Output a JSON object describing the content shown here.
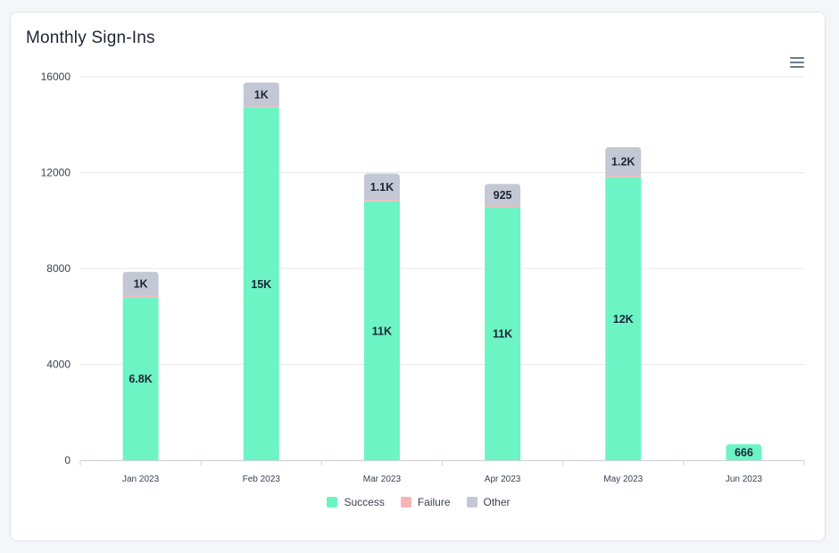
{
  "card": {
    "title": "Monthly Sign-Ins"
  },
  "toolbar": {
    "menu_icon": "hamburger-menu-icon"
  },
  "colors": {
    "success": "#6cf4c4",
    "failure": "#f6b5b5",
    "other": "#c4c8d4",
    "grid": "#e6e8ed",
    "label": "#1f2433",
    "axis": "#3a4150"
  },
  "chart_data": {
    "type": "bar",
    "stacked": true,
    "title": "Monthly Sign-Ins",
    "categories": [
      "Jan 2023",
      "Feb 2023",
      "Mar 2023",
      "Apr 2023",
      "May 2023",
      "Jun 2023"
    ],
    "series": [
      {
        "name": "Success",
        "values": [
          6800,
          14700,
          10800,
          10550,
          11800,
          666
        ],
        "labels": [
          "6.8K",
          "15K",
          "11K",
          "11K",
          "12K",
          "666"
        ]
      },
      {
        "name": "Failure",
        "values": [
          60,
          60,
          60,
          50,
          60,
          0
        ],
        "labels": [
          "",
          "",
          "",
          "",
          "",
          ""
        ]
      },
      {
        "name": "Other",
        "values": [
          1000,
          1000,
          1100,
          925,
          1200,
          0
        ],
        "labels": [
          "1K",
          "1K",
          "1.1K",
          "925",
          "1.2K",
          ""
        ]
      }
    ],
    "y_ticks": [
      "0",
      "4000",
      "8000",
      "12000",
      "16000"
    ],
    "ylim": [
      0,
      16000
    ],
    "grid": true,
    "legend_position": "bottom-center"
  }
}
